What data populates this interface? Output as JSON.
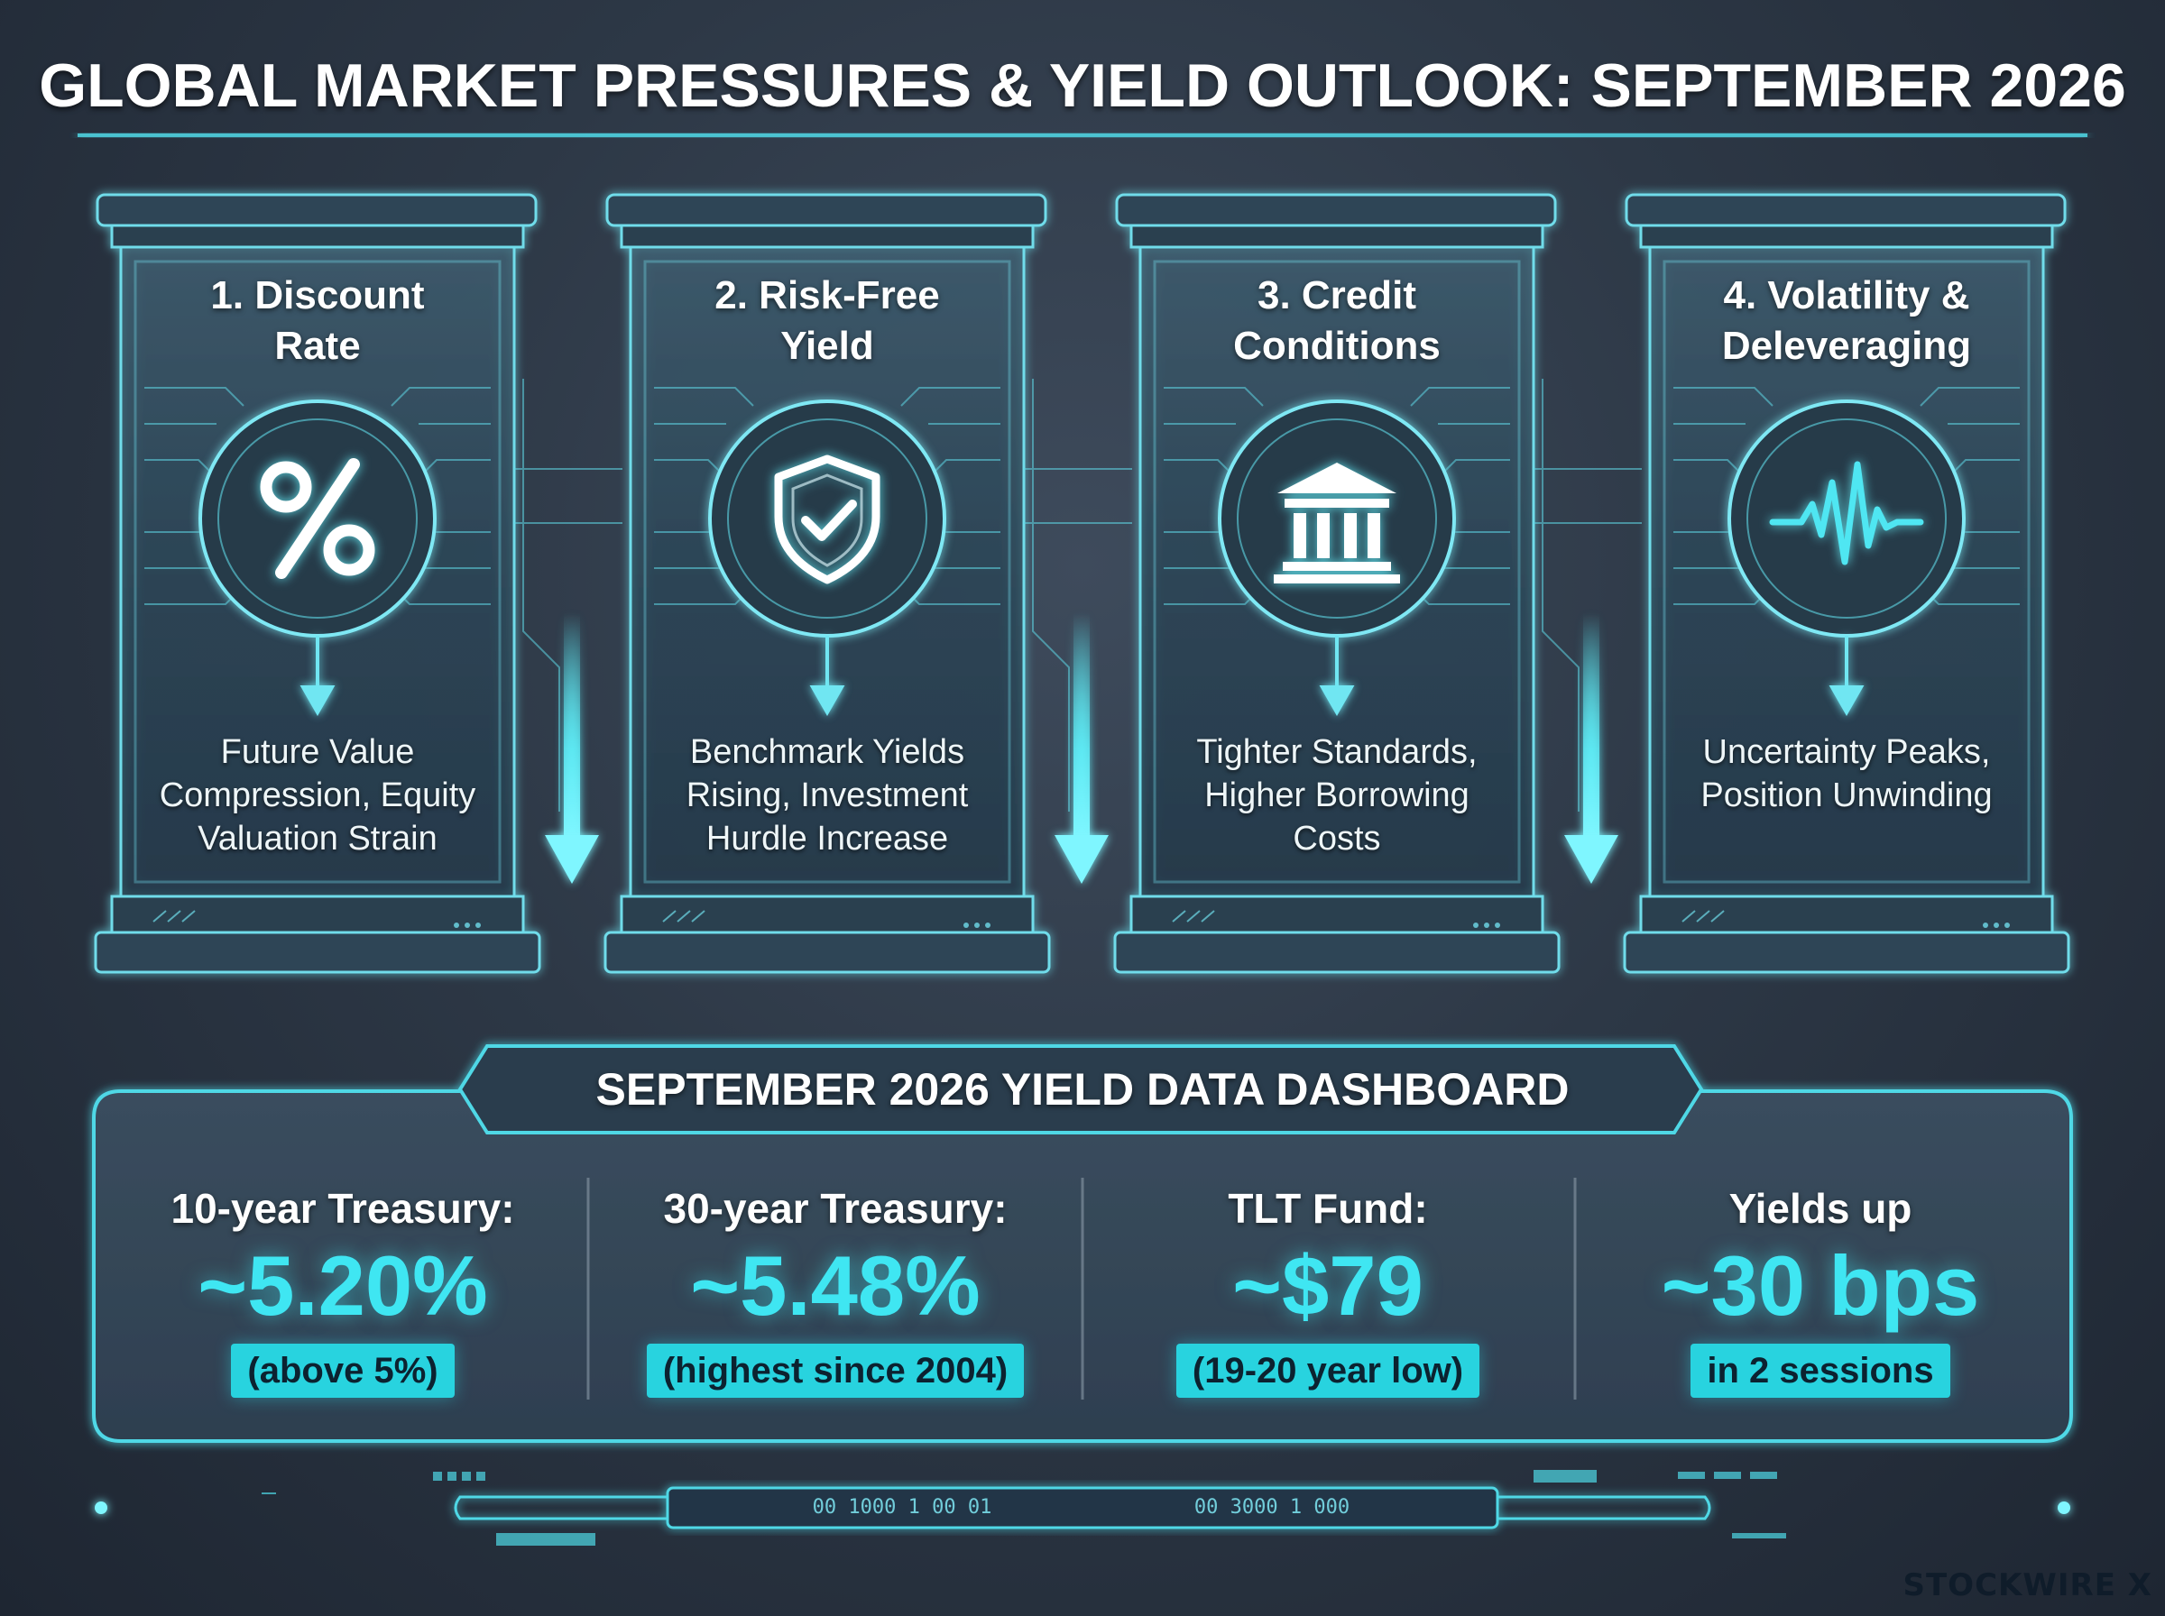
{
  "title": "GLOBAL MARKET PRESSURES & YIELD OUTLOOK: SEPTEMBER 2026",
  "colors": {
    "accent": "#3fe6f2",
    "frame": "#5fd8e6",
    "background": "#2d3846",
    "note_bg": "#28d3df"
  },
  "pillars": [
    {
      "heading_line1": "1. Discount",
      "heading_line2": "Rate",
      "icon": "percent-icon",
      "desc_line1": "Future Value",
      "desc_line2": "Compression, Equity",
      "desc_line3": "Valuation Strain"
    },
    {
      "heading_line1": "2. Risk-Free",
      "heading_line2": "Yield",
      "icon": "shield-check-icon",
      "desc_line1": "Benchmark Yields",
      "desc_line2": "Rising, Investment",
      "desc_line3": "Hurdle Increase"
    },
    {
      "heading_line1": "3. Credit",
      "heading_line2": "Conditions",
      "icon": "bank-icon",
      "desc_line1": "Tighter Standards,",
      "desc_line2": "Higher Borrowing",
      "desc_line3": "Costs"
    },
    {
      "heading_line1": "4. Volatility &",
      "heading_line2": "Deleveraging",
      "icon": "pulse-icon",
      "desc_line1": "Uncertainty Peaks,",
      "desc_line2": "Position Unwinding",
      "desc_line3": ""
    }
  ],
  "dashboard": {
    "title": "SEPTEMBER 2026 YIELD DATA DASHBOARD",
    "metrics": [
      {
        "label": "10-year Treasury:",
        "value": "~5.20%",
        "note": "(above 5%)"
      },
      {
        "label": "30-year Treasury:",
        "value": "~5.48%",
        "note": "(highest since 2004)"
      },
      {
        "label": "TLT Fund:",
        "value": "~$79",
        "note": "(19-20 year low)"
      },
      {
        "label": "Yields up",
        "value": "~30 bps",
        "note": "in 2 sessions"
      }
    ]
  },
  "footer": {
    "code_left": "00 1000 1 00 01",
    "code_right": "00 3000 1 000"
  },
  "brand": "STOCKWIRE X"
}
